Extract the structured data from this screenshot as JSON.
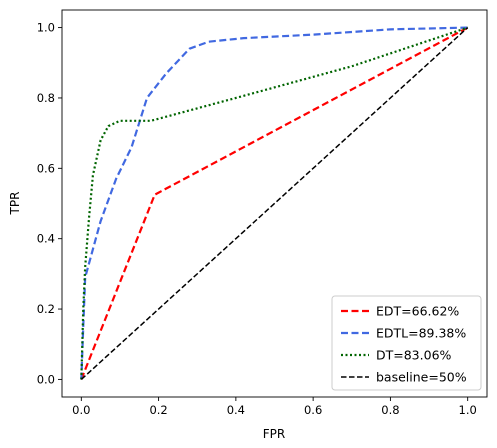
{
  "chart_data": {
    "type": "line",
    "title": "",
    "xlabel": "FPR",
    "ylabel": "TPR",
    "xlim": [
      -0.05,
      1.05
    ],
    "ylim": [
      -0.05,
      1.05
    ],
    "xticks": [
      0.0,
      0.2,
      0.4,
      0.6,
      0.8,
      1.0
    ],
    "yticks": [
      0.0,
      0.2,
      0.4,
      0.6,
      0.8,
      1.0
    ],
    "xtick_labels": [
      "0.0",
      "0.2",
      "0.4",
      "0.6",
      "0.8",
      "1.0"
    ],
    "ytick_labels": [
      "0.0",
      "0.2",
      "0.4",
      "0.6",
      "0.8",
      "1.0"
    ],
    "grid": false,
    "legend_position": "lower right",
    "series": [
      {
        "name": "EDT=66.62%",
        "color": "#ff0000",
        "style": "dashed",
        "x": [
          0.0,
          0.19,
          1.0
        ],
        "y": [
          0.0,
          0.525,
          1.0
        ]
      },
      {
        "name": "EDTL=89.38%",
        "color": "#4169e1",
        "style": "dashed",
        "x": [
          0.0,
          0.005,
          0.01,
          0.05,
          0.09,
          0.13,
          0.17,
          0.22,
          0.28,
          0.33,
          0.42,
          0.6,
          0.8,
          1.0
        ],
        "y": [
          0.0,
          0.15,
          0.29,
          0.45,
          0.57,
          0.66,
          0.8,
          0.87,
          0.94,
          0.96,
          0.97,
          0.98,
          0.995,
          1.0
        ]
      },
      {
        "name": "DT=83.06%",
        "color": "#006400",
        "style": "dotted",
        "x": [
          0.0,
          0.005,
          0.01,
          0.02,
          0.03,
          0.05,
          0.07,
          0.1,
          0.18,
          0.4,
          0.7,
          1.0
        ],
        "y": [
          0.0,
          0.2,
          0.32,
          0.46,
          0.58,
          0.68,
          0.72,
          0.735,
          0.735,
          0.8,
          0.89,
          1.0
        ]
      },
      {
        "name": "baseline=50%",
        "color": "#000000",
        "style": "dashed",
        "x": [
          0.0,
          1.0
        ],
        "y": [
          0.0,
          1.0
        ]
      }
    ]
  }
}
